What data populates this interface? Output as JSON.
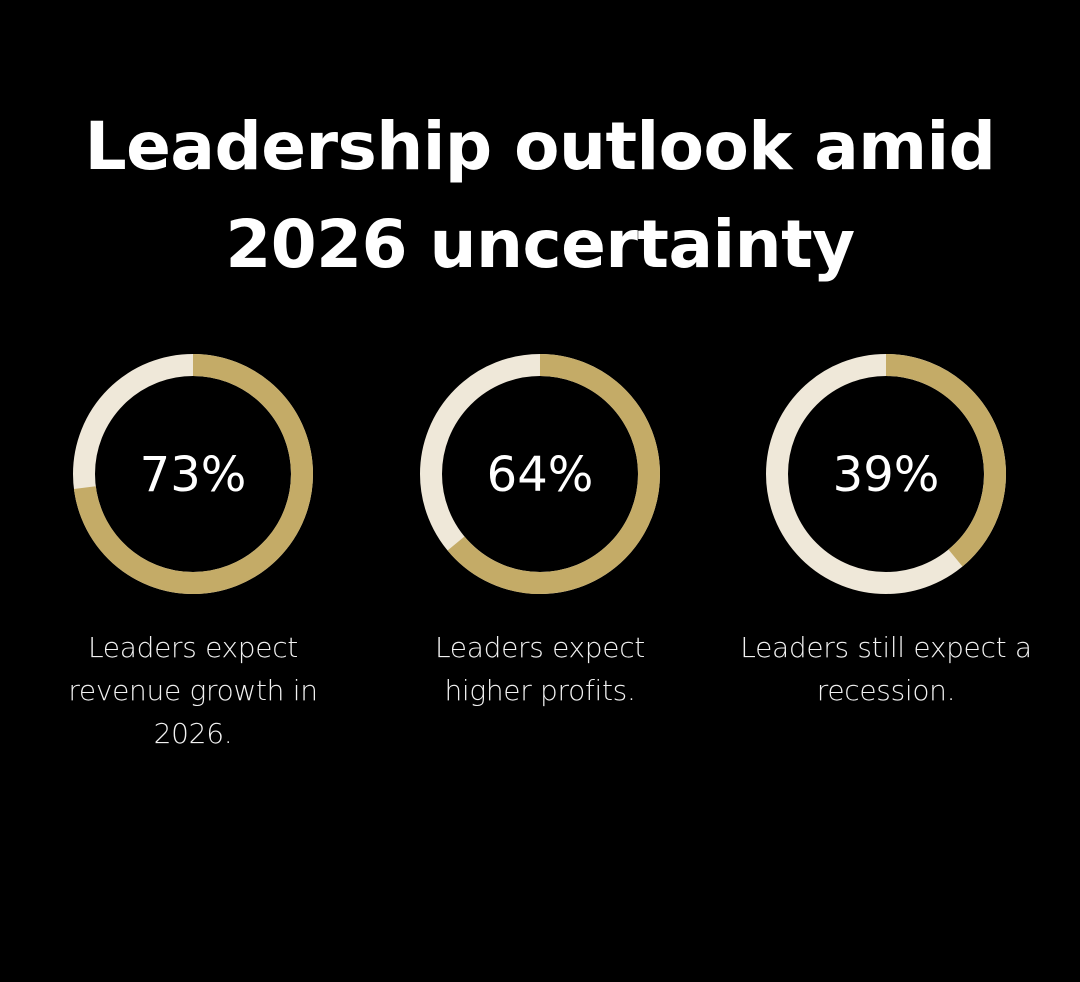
{
  "title": {
    "line1": "Leadership outlook amid",
    "line2": "2026 uncertainty"
  },
  "colors": {
    "background": "#000000",
    "fill": "#c4ab67",
    "track": "#efe8d9",
    "text": "#ffffff"
  },
  "chart_data": [
    {
      "type": "pie",
      "value": 73,
      "label": "73%",
      "caption": "Leaders expect revenue growth in 2026."
    },
    {
      "type": "pie",
      "value": 64,
      "label": "64%",
      "caption": "Leaders expect higher profits."
    },
    {
      "type": "pie",
      "value": 39,
      "label": "39%",
      "caption": "Leaders still expect a recession."
    }
  ]
}
